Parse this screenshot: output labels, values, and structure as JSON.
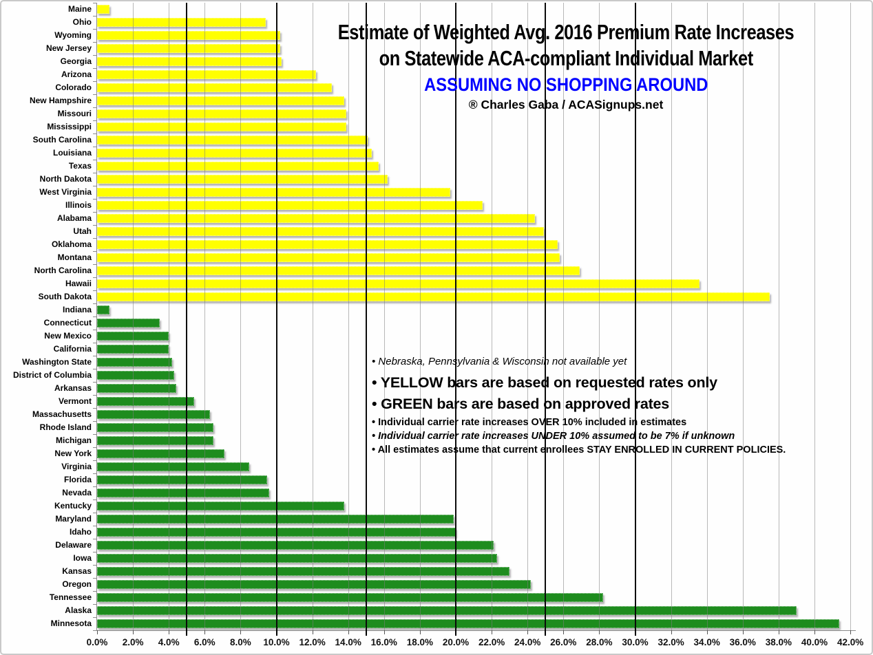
{
  "title": {
    "line1": "Estimate of Weighted Avg. 2016 Premium Rate Increases",
    "line2": "on Statewide ACA-compliant Individual Market",
    "line3": "ASSUMING NO SHOPPING AROUND",
    "byline": "® Charles Gaba / ACASignups.net"
  },
  "notes": [
    "• Nebraska, Pennsylvania & Wisconsin not available yet",
    "• YELLOW bars are based on requested rates only",
    "• GREEN bars are based on approved rates",
    "• Individual carrier rate increases OVER 10% included in estimates",
    "• Individual carrier rate increases UNDER 10% assumed to be 7% if unknown",
    "• All estimates assume that current enrollees STAY ENROLLED IN CURRENT POLICIES."
  ],
  "colors": {
    "yellow_bar": "#FFFF00",
    "green_bar": "#1E8C1E",
    "title_blue": "#0000FF",
    "grid_light": "#7D7D7D",
    "grid_bold": "#0A0A0A"
  },
  "chart_data": {
    "type": "bar",
    "orientation": "horizontal",
    "value_unit": "percent",
    "xlim": [
      0,
      42
    ],
    "x_tick_labels": [
      "0.0%",
      "2.0%",
      "4.0%",
      "6.0%",
      "8.0%",
      "10.0%",
      "12.0%",
      "14.0%",
      "16.0%",
      "18.0%",
      "20.0%",
      "22.0%",
      "24.0%",
      "26.0%",
      "28.0%",
      "30.0%",
      "32.0%",
      "34.0%",
      "36.0%",
      "38.0%",
      "40.0%",
      "42.0%"
    ],
    "x_bold_gridlines": [
      5,
      10,
      15,
      20,
      25,
      30
    ],
    "grid": true,
    "series": [
      {
        "key": "requested",
        "name": "Requested rates (YELLOW bars)",
        "color": "#FFFF00"
      },
      {
        "key": "approved",
        "name": "Approved rates (GREEN bars)",
        "color": "#1E8C1E"
      }
    ],
    "bars": [
      {
        "state": "Maine",
        "value": 0.7,
        "group": "requested"
      },
      {
        "state": "Ohio",
        "value": 9.4,
        "group": "requested"
      },
      {
        "state": "Wyoming",
        "value": 10.2,
        "group": "requested"
      },
      {
        "state": "New Jersey",
        "value": 10.2,
        "group": "requested"
      },
      {
        "state": "Georgia",
        "value": 10.3,
        "group": "requested"
      },
      {
        "state": "Arizona",
        "value": 12.2,
        "group": "requested"
      },
      {
        "state": "Colorado",
        "value": 13.1,
        "group": "requested"
      },
      {
        "state": "New Hampshire",
        "value": 13.8,
        "group": "requested"
      },
      {
        "state": "Missouri",
        "value": 13.9,
        "group": "requested"
      },
      {
        "state": "Mississippi",
        "value": 13.9,
        "group": "requested"
      },
      {
        "state": "South Carolina",
        "value": 15.1,
        "group": "requested"
      },
      {
        "state": "Louisiana",
        "value": 15.3,
        "group": "requested"
      },
      {
        "state": "Texas",
        "value": 15.7,
        "group": "requested"
      },
      {
        "state": "North Dakota",
        "value": 16.2,
        "group": "requested"
      },
      {
        "state": "West Virginia",
        "value": 19.7,
        "group": "requested"
      },
      {
        "state": "Illinois",
        "value": 21.5,
        "group": "requested"
      },
      {
        "state": "Alabama",
        "value": 24.4,
        "group": "requested"
      },
      {
        "state": "Utah",
        "value": 24.9,
        "group": "requested"
      },
      {
        "state": "Oklahoma",
        "value": 25.7,
        "group": "requested"
      },
      {
        "state": "Montana",
        "value": 25.8,
        "group": "requested"
      },
      {
        "state": "North Carolina",
        "value": 26.9,
        "group": "requested"
      },
      {
        "state": "Hawaii",
        "value": 33.6,
        "group": "requested"
      },
      {
        "state": "South Dakota",
        "value": 37.5,
        "group": "requested"
      },
      {
        "state": "Indiana",
        "value": 0.7,
        "group": "approved"
      },
      {
        "state": "Connecticut",
        "value": 3.5,
        "group": "approved"
      },
      {
        "state": "New Mexico",
        "value": 4.0,
        "group": "approved"
      },
      {
        "state": "California",
        "value": 4.0,
        "group": "approved"
      },
      {
        "state": "Washington State",
        "value": 4.2,
        "group": "approved"
      },
      {
        "state": "District of Columbia",
        "value": 4.3,
        "group": "approved"
      },
      {
        "state": "Arkansas",
        "value": 4.4,
        "group": "approved"
      },
      {
        "state": "Vermont",
        "value": 5.4,
        "group": "approved"
      },
      {
        "state": "Massachusetts",
        "value": 6.3,
        "group": "approved"
      },
      {
        "state": "Rhode Island",
        "value": 6.5,
        "group": "approved"
      },
      {
        "state": "Michigan",
        "value": 6.5,
        "group": "approved"
      },
      {
        "state": "New York",
        "value": 7.1,
        "group": "approved"
      },
      {
        "state": "Virginia",
        "value": 8.5,
        "group": "approved"
      },
      {
        "state": "Florida",
        "value": 9.5,
        "group": "approved"
      },
      {
        "state": "Nevada",
        "value": 9.6,
        "group": "approved"
      },
      {
        "state": "Kentucky",
        "value": 13.8,
        "group": "approved"
      },
      {
        "state": "Maryland",
        "value": 19.9,
        "group": "approved"
      },
      {
        "state": "Idaho",
        "value": 20.0,
        "group": "approved"
      },
      {
        "state": "Delaware",
        "value": 22.1,
        "group": "approved"
      },
      {
        "state": "Iowa",
        "value": 22.3,
        "group": "approved"
      },
      {
        "state": "Kansas",
        "value": 23.0,
        "group": "approved"
      },
      {
        "state": "Oregon",
        "value": 24.2,
        "group": "approved"
      },
      {
        "state": "Tennessee",
        "value": 28.2,
        "group": "approved"
      },
      {
        "state": "Alaska",
        "value": 39.0,
        "group": "approved"
      },
      {
        "state": "Minnesota",
        "value": 41.4,
        "group": "approved"
      }
    ]
  }
}
